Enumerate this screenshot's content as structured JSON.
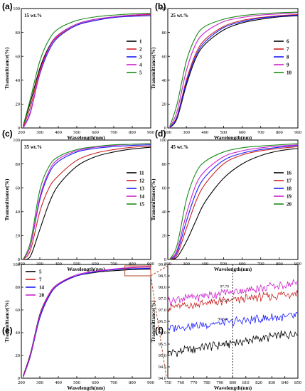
{
  "chart_data": [
    {
      "panel": "(a)",
      "type": "line",
      "note": "15 wt.%",
      "xlabel": "Wavelength(nm)",
      "ylabel": "Transmittance(%)",
      "xlim": [
        200,
        900
      ],
      "ylim": [
        0,
        100
      ],
      "xticks": [
        200,
        300,
        400,
        500,
        600,
        700,
        800,
        900
      ],
      "yticks": [
        0,
        20,
        40,
        60,
        80,
        100
      ],
      "legend_position": "right",
      "x": [
        210,
        250,
        300,
        350,
        400,
        500,
        600,
        700,
        800,
        900
      ],
      "series": [
        {
          "name": "1",
          "color": "#000000",
          "values": [
            2,
            22,
            50,
            68,
            78,
            87,
            91,
            93,
            94.5,
            95
          ]
        },
        {
          "name": "2",
          "color": "#cc2222",
          "values": [
            1,
            18,
            48,
            67,
            77,
            86,
            90,
            92.5,
            94,
            95
          ]
        },
        {
          "name": "3",
          "color": "#1a1aff",
          "values": [
            0,
            14,
            45,
            65,
            76,
            86,
            90,
            92.5,
            93.5,
            94
          ]
        },
        {
          "name": "4",
          "color": "#cc22cc",
          "values": [
            0,
            13,
            46,
            67,
            78,
            87,
            91,
            93,
            94.5,
            95.5
          ]
        },
        {
          "name": "5",
          "color": "#1a8a1a",
          "values": [
            2,
            25,
            56,
            74,
            83,
            90,
            93,
            94.5,
            95.5,
            96
          ]
        }
      ]
    },
    {
      "panel": "(b)",
      "type": "line",
      "note": "25 wt.%",
      "xlabel": "Wavelength(nm)",
      "ylabel": "Transmittance(%)",
      "xlim": [
        200,
        900
      ],
      "ylim": [
        0,
        100
      ],
      "xticks": [
        200,
        300,
        400,
        500,
        600,
        700,
        800,
        900
      ],
      "yticks": [
        0,
        20,
        40,
        60,
        80,
        100
      ],
      "legend_position": "right",
      "x": [
        210,
        250,
        300,
        350,
        400,
        500,
        600,
        700,
        800,
        900
      ],
      "series": [
        {
          "name": "6",
          "color": "#000000",
          "values": [
            0,
            8,
            36,
            58,
            70,
            82,
            88,
            91,
            93,
            94
          ]
        },
        {
          "name": "7",
          "color": "#cc2222",
          "values": [
            0,
            10,
            40,
            62,
            74,
            85,
            90,
            92.5,
            94,
            95
          ]
        },
        {
          "name": "8",
          "color": "#1a1aff",
          "values": [
            0,
            9,
            38,
            60,
            72,
            84,
            89,
            92,
            93.5,
            94.5
          ]
        },
        {
          "name": "9",
          "color": "#cc22cc",
          "values": [
            0,
            14,
            48,
            70,
            80,
            89,
            92.5,
            94.5,
            95.5,
            96.5
          ]
        },
        {
          "name": "10",
          "color": "#1a8a1a",
          "values": [
            1,
            20,
            56,
            76,
            85,
            91,
            94,
            95.5,
            96.5,
            97
          ]
        }
      ]
    },
    {
      "panel": "(c)",
      "type": "line",
      "note": "35 wt.%",
      "xlabel": "Wavelength(nm)",
      "ylabel": "Transmittance(%)",
      "xlim": [
        200,
        900
      ],
      "ylim": [
        0,
        100
      ],
      "xticks": [
        200,
        300,
        400,
        500,
        600,
        700,
        800,
        900
      ],
      "yticks": [
        0,
        20,
        40,
        60,
        80,
        100
      ],
      "legend_position": "right",
      "x": [
        210,
        250,
        300,
        350,
        400,
        500,
        600,
        700,
        800,
        900
      ],
      "series": [
        {
          "name": "11",
          "color": "#000000",
          "values": [
            0,
            3,
            25,
            47,
            62,
            78,
            86,
            90,
            92.5,
            94
          ]
        },
        {
          "name": "12",
          "color": "#cc2222",
          "values": [
            0,
            8,
            40,
            60,
            70,
            83,
            89,
            92,
            94,
            95
          ]
        },
        {
          "name": "13",
          "color": "#1a1aff",
          "values": [
            0,
            12,
            50,
            72,
            82,
            90,
            93,
            94.5,
            95.5,
            96
          ]
        },
        {
          "name": "14",
          "color": "#cc22cc",
          "values": [
            0,
            12,
            52,
            74,
            84,
            91,
            94,
            95.5,
            96.5,
            97
          ]
        },
        {
          "name": "15",
          "color": "#1a8a1a",
          "values": [
            0,
            15,
            58,
            78,
            86,
            92,
            94.5,
            96,
            96.5,
            97
          ]
        }
      ]
    },
    {
      "panel": "(d)",
      "type": "line",
      "note": "45 wt.%",
      "xlabel": "Wavelength(nm)",
      "ylabel": "Transmittance(%)",
      "xlim": [
        200,
        900
      ],
      "ylim": [
        0,
        100
      ],
      "xticks": [
        200,
        300,
        400,
        500,
        600,
        700,
        800,
        900
      ],
      "yticks": [
        0,
        20,
        40,
        60,
        80,
        100
      ],
      "legend_position": "right",
      "x": [
        210,
        250,
        300,
        350,
        400,
        500,
        600,
        700,
        800,
        900
      ],
      "series": [
        {
          "name": "16",
          "color": "#000000",
          "values": [
            0,
            2,
            15,
            32,
            48,
            68,
            80,
            87,
            91,
            93
          ]
        },
        {
          "name": "17",
          "color": "#cc2222",
          "values": [
            0,
            4,
            26,
            48,
            63,
            80,
            87.5,
            91,
            93,
            94.5
          ]
        },
        {
          "name": "18",
          "color": "#1a1aff",
          "values": [
            0,
            6,
            32,
            55,
            69,
            83,
            89,
            92,
            94,
            95.5
          ]
        },
        {
          "name": "19",
          "color": "#cc22cc",
          "values": [
            0,
            8,
            38,
            62,
            74,
            86,
            91,
            93.5,
            95,
            96
          ]
        },
        {
          "name": "20",
          "color": "#1a8a1a",
          "values": [
            0,
            12,
            50,
            72,
            82,
            90,
            93.5,
            95,
            96,
            97
          ]
        }
      ]
    },
    {
      "panel": "(e)",
      "type": "line",
      "xlabel": "Wavelength(nm)",
      "ylabel": "Transmittance(%)",
      "xlim": [
        200,
        900
      ],
      "ylim": [
        0,
        100
      ],
      "xticks": [
        200,
        300,
        400,
        500,
        600,
        700,
        800,
        900
      ],
      "yticks": [
        0,
        20,
        40,
        60,
        80,
        100
      ],
      "legend_position": "top-left",
      "x": [
        210,
        250,
        300,
        350,
        400,
        500,
        600,
        700,
        800,
        900
      ],
      "series": [
        {
          "name": "5",
          "color": "#000000",
          "values": [
            2,
            22,
            56,
            74,
            83,
            90,
            93,
            94.5,
            95.5,
            96
          ]
        },
        {
          "name": "7",
          "color": "#cc2222",
          "values": [
            1,
            20,
            54,
            73,
            82,
            90,
            93.5,
            95.5,
            97.2,
            97.8
          ]
        },
        {
          "name": "14",
          "color": "#1a1aff",
          "values": [
            1,
            20,
            53,
            72,
            82,
            90,
            93.5,
            95.5,
            96.3,
            96.7
          ]
        },
        {
          "name": "20",
          "color": "#cc22cc",
          "values": [
            1,
            21,
            55,
            74,
            83,
            91,
            94,
            96,
            97.5,
            98
          ]
        }
      ],
      "inset_box_x": [
        760,
        900
      ]
    },
    {
      "panel": "(f)",
      "type": "line",
      "xlabel": "Wavelength(nm)",
      "ylabel": "Transmittance(%)",
      "xlim": [
        750,
        850
      ],
      "ylim": [
        94.0,
        99.0
      ],
      "xticks": [
        750,
        760,
        770,
        780,
        790,
        800,
        810,
        820,
        830,
        840,
        850
      ],
      "yticks": [
        "94.0",
        "94.5",
        "95.0",
        "95.5",
        "96.0",
        "96.5",
        "97.0",
        "97.5",
        "98.0",
        "98.5",
        "99.0"
      ],
      "reference_line_x": 800,
      "series": [
        {
          "name": "5",
          "color": "#000000",
          "start": 95.1,
          "end": 96.0
        },
        {
          "name": "7",
          "color": "#cc2222",
          "start": 97.1,
          "end": 97.75
        },
        {
          "name": "14",
          "color": "#1a1aff",
          "start": 96.2,
          "end": 96.75
        },
        {
          "name": "20",
          "color": "#cc22cc",
          "start": 97.4,
          "end": 98.2
        }
      ],
      "annotations": [
        "97.78",
        "97.27",
        "96.50",
        "95.62"
      ]
    }
  ]
}
